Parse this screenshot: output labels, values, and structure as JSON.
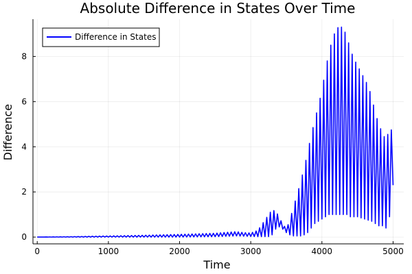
{
  "chart_data": {
    "type": "line",
    "title": "Absolute Difference in States Over Time",
    "xlabel": "Time",
    "ylabel": "Difference",
    "xlim": [
      -60,
      5150
    ],
    "ylim": [
      -0.3,
      9.65
    ],
    "xticks": [
      0,
      1000,
      2000,
      3000,
      4000,
      5000
    ],
    "yticks": [
      0,
      2,
      4,
      6,
      8
    ],
    "grid": true,
    "legend_position": "top-left",
    "colors": {
      "series": "#0000ff"
    },
    "series": [
      {
        "name": "Difference in States",
        "oscillation_period": 50,
        "envelope": {
          "x": [
            0,
            500,
            1000,
            1500,
            2000,
            2500,
            2700,
            2800,
            2900,
            3000,
            3100,
            3200,
            3250,
            3300,
            3350,
            3400,
            3450,
            3500,
            3550,
            3600,
            3650,
            3700,
            3750,
            3800,
            3850,
            3900,
            3950,
            4000,
            4050,
            4100,
            4150,
            4200,
            4250,
            4300,
            4350,
            4400,
            4450,
            4500,
            4550,
            4600,
            4650,
            4700,
            4750,
            4800,
            4850,
            4900,
            4950,
            5000
          ],
          "upper": [
            0.0,
            0.02,
            0.05,
            0.08,
            0.12,
            0.17,
            0.22,
            0.24,
            0.2,
            0.18,
            0.3,
            0.75,
            1.0,
            1.2,
            1.15,
            0.9,
            0.55,
            0.4,
            0.7,
            1.4,
            1.8,
            2.5,
            3.0,
            3.8,
            4.5,
            5.2,
            5.8,
            6.5,
            7.4,
            8.2,
            8.8,
            9.2,
            9.35,
            9.25,
            8.9,
            8.3,
            7.9,
            7.6,
            7.3,
            7.0,
            6.7,
            6.2,
            5.5,
            5.0,
            4.6,
            4.3,
            4.8,
            4.7
          ],
          "lower": [
            0.0,
            0.0,
            0.0,
            0.0,
            0.0,
            0.02,
            0.04,
            0.05,
            0.04,
            0.03,
            0.02,
            0.02,
            0.02,
            0.1,
            0.35,
            0.45,
            0.35,
            0.2,
            0.1,
            0.05,
            0.05,
            0.05,
            0.1,
            0.2,
            0.4,
            0.6,
            0.7,
            0.8,
            0.9,
            1.0,
            1.0,
            1.0,
            1.0,
            1.0,
            1.0,
            0.9,
            0.9,
            0.9,
            0.85,
            0.8,
            0.75,
            0.7,
            0.6,
            0.5,
            0.5,
            0.4,
            0.9,
            2.3
          ]
        }
      }
    ]
  }
}
